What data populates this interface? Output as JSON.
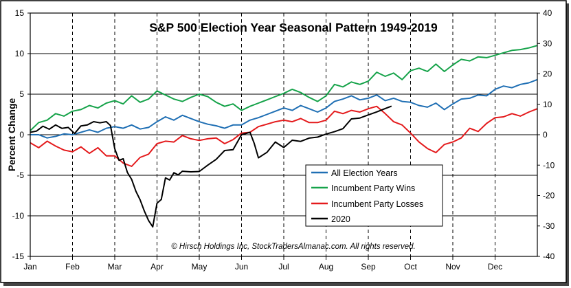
{
  "chart_data": {
    "type": "line",
    "title": "S&P 500 Election Year Seasonal Pattern 1949-2019",
    "ylabel": "Percent Change",
    "copyright": "© Hirsch Holdings Inc, StockTradersAlmanac.com.  All rights reserved.",
    "months": [
      "Jan",
      "Feb",
      "Mar",
      "Apr",
      "May",
      "Jun",
      "Jul",
      "Aug",
      "Sep",
      "Oct",
      "Nov",
      "Dec"
    ],
    "left_axis": {
      "range": [
        -15,
        15
      ],
      "ticks": [
        "-15",
        "-10",
        "-5",
        "0",
        "5",
        "10",
        "15"
      ]
    },
    "right_axis": {
      "range": [
        -40,
        40
      ],
      "ticks": [
        "-40",
        "-30",
        "-20",
        "-10",
        "0",
        "10",
        "20",
        "30",
        "40"
      ]
    },
    "legend": {
      "position": "lower-right",
      "items": [
        {
          "label": "All Election Years",
          "color": "#1f6fb4"
        },
        {
          "label": "Incumbent Party Wins",
          "color": "#16a34a"
        },
        {
          "label": "Incumbent Party Losses",
          "color": "#e41a1c"
        },
        {
          "label": "2020",
          "color": "#000000"
        }
      ]
    },
    "series": [
      {
        "name": "All Election Years",
        "axis": "left",
        "color": "#1f6fb4",
        "x": [
          0,
          0.2,
          0.4,
          0.6,
          0.8,
          1,
          1.2,
          1.4,
          1.6,
          1.8,
          2,
          2.2,
          2.4,
          2.6,
          2.8,
          3,
          3.2,
          3.4,
          3.6,
          3.8,
          4,
          4.2,
          4.4,
          4.6,
          4.8,
          5,
          5.2,
          5.4,
          5.6,
          5.8,
          6,
          6.2,
          6.4,
          6.6,
          6.8,
          7,
          7.2,
          7.4,
          7.6,
          7.8,
          8,
          8.2,
          8.4,
          8.6,
          8.8,
          9,
          9.2,
          9.4,
          9.6,
          9.8,
          10,
          10.2,
          10.4,
          10.6,
          10.8,
          11,
          11.2,
          11.4,
          11.6,
          11.8,
          12
        ],
        "y": [
          0,
          0,
          -0.4,
          -0.2,
          0.1,
          0,
          0.3,
          0.6,
          0.3,
          0.8,
          1,
          0.8,
          1.2,
          0.7,
          0.9,
          1.6,
          2.2,
          1.8,
          2.4,
          2,
          1.6,
          1.3,
          1.1,
          0.8,
          1.2,
          1.2,
          1.8,
          2.1,
          2.5,
          2.9,
          3.3,
          3,
          3.6,
          3.2,
          2.8,
          3.3,
          4.1,
          4.4,
          4.8,
          4.3,
          4.5,
          4.9,
          4.2,
          4.5,
          4.1,
          4,
          3.6,
          3.4,
          3.9,
          3.1,
          3.8,
          4.4,
          4.5,
          4.9,
          4.8,
          5.6,
          6,
          5.8,
          6.2,
          6.4,
          6.8
        ]
      },
      {
        "name": "Incumbent Party Wins",
        "axis": "left",
        "color": "#16a34a",
        "x": [
          0,
          0.2,
          0.4,
          0.6,
          0.8,
          1,
          1.2,
          1.4,
          1.6,
          1.8,
          2,
          2.2,
          2.4,
          2.6,
          2.8,
          3,
          3.2,
          3.4,
          3.6,
          3.8,
          4,
          4.2,
          4.4,
          4.6,
          4.8,
          5,
          5.2,
          5.4,
          5.6,
          5.8,
          6,
          6.2,
          6.4,
          6.6,
          6.8,
          7,
          7.2,
          7.4,
          7.6,
          7.8,
          8,
          8.2,
          8.4,
          8.6,
          8.8,
          9,
          9.2,
          9.4,
          9.6,
          9.8,
          10,
          10.2,
          10.4,
          10.6,
          10.8,
          11,
          11.2,
          11.4,
          11.6,
          11.8,
          12
        ],
        "y": [
          0.5,
          1.5,
          1.8,
          2.6,
          2.3,
          2.9,
          3.1,
          3.6,
          3.3,
          3.9,
          4.2,
          3.8,
          4.8,
          4,
          4.4,
          5.4,
          4.9,
          4.4,
          4.1,
          4.6,
          5,
          4.7,
          4,
          3.5,
          3.8,
          3,
          3.5,
          3.9,
          4.3,
          4.7,
          5.1,
          5.6,
          5.2,
          4.6,
          4.1,
          4.8,
          6.2,
          5.9,
          6.5,
          6.2,
          6.6,
          7.7,
          7.2,
          7.6,
          6.8,
          7.9,
          8.2,
          7.8,
          8.7,
          7.8,
          8.6,
          9.3,
          9.1,
          9.6,
          9.5,
          9.8,
          10.1,
          10.4,
          10.5,
          10.7,
          11
        ]
      },
      {
        "name": "Incumbent Party Losses",
        "axis": "left",
        "color": "#e41a1c",
        "x": [
          0,
          0.2,
          0.4,
          0.6,
          0.8,
          1,
          1.2,
          1.4,
          1.6,
          1.8,
          2,
          2.2,
          2.4,
          2.6,
          2.8,
          3,
          3.2,
          3.4,
          3.6,
          3.8,
          4,
          4.2,
          4.4,
          4.6,
          4.8,
          5,
          5.2,
          5.4,
          5.6,
          5.8,
          6,
          6.2,
          6.4,
          6.6,
          6.8,
          7,
          7.2,
          7.4,
          7.6,
          7.8,
          8,
          8.2,
          8.4,
          8.6,
          8.8,
          9,
          9.2,
          9.4,
          9.6,
          9.8,
          10,
          10.2,
          10.4,
          10.6,
          10.8,
          11,
          11.2,
          11.4,
          11.6,
          11.8,
          12
        ],
        "y": [
          -1,
          -1.6,
          -0.8,
          -1.4,
          -1.9,
          -2.1,
          -1.5,
          -2.3,
          -1.6,
          -2.6,
          -2.6,
          -3.5,
          -3.9,
          -2.8,
          -2.4,
          -1.1,
          -0.8,
          -0.9,
          -0.1,
          -0.5,
          -0.7,
          -0.5,
          -0.4,
          -1.1,
          -0.6,
          0.2,
          0.3,
          1,
          1.3,
          1.6,
          1.8,
          1.6,
          2,
          1.5,
          1.5,
          1.8,
          2.9,
          2.6,
          3,
          2.8,
          3.2,
          3.5,
          2.6,
          1.6,
          1.2,
          0.2,
          -0.9,
          -1.7,
          -2.2,
          -1.2,
          -0.9,
          -0.4,
          0.8,
          0.4,
          1.4,
          2.1,
          2.2,
          2.6,
          2.3,
          2.8,
          3.2
        ]
      },
      {
        "name": "2020",
        "axis": "right",
        "color": "#000000",
        "x": [
          0,
          0.15,
          0.3,
          0.45,
          0.6,
          0.75,
          0.9,
          1.05,
          1.2,
          1.35,
          1.5,
          1.65,
          1.8,
          1.9,
          2,
          2.1,
          2.2,
          2.3,
          2.4,
          2.5,
          2.6,
          2.7,
          2.8,
          2.9,
          3,
          3.1,
          3.2,
          3.3,
          3.4,
          3.5,
          3.6,
          3.8,
          4,
          4.2,
          4.4,
          4.6,
          4.8,
          5,
          5.2,
          5.3,
          5.4,
          5.6,
          5.8,
          6,
          6.2,
          6.4,
          6.6,
          6.8,
          7,
          7.2,
          7.4,
          7.6,
          7.8,
          8,
          8.2,
          8.4,
          8.55
        ],
        "y": [
          0.8,
          1.2,
          2.8,
          1.8,
          3.2,
          2.1,
          2.4,
          0.4,
          2.9,
          3.2,
          4.3,
          3.9,
          4.3,
          3,
          -4.6,
          -8.4,
          -7.9,
          -12.4,
          -14.7,
          -18.6,
          -21.4,
          -25.1,
          -28.2,
          -30.3,
          -22.5,
          -21.3,
          -14.2,
          -14.9,
          -12.5,
          -13.2,
          -12,
          -12.2,
          -12.1,
          -10,
          -8.1,
          -5.2,
          -4.9,
          0,
          0.8,
          -2.8,
          -7.6,
          -5.8,
          -2.4,
          -4.2,
          -1.8,
          -2.2,
          -1.1,
          -0.8,
          0.2,
          1,
          2,
          5.2,
          5.5,
          6.5,
          7.5,
          8.6,
          9.4
        ]
      }
    ]
  }
}
